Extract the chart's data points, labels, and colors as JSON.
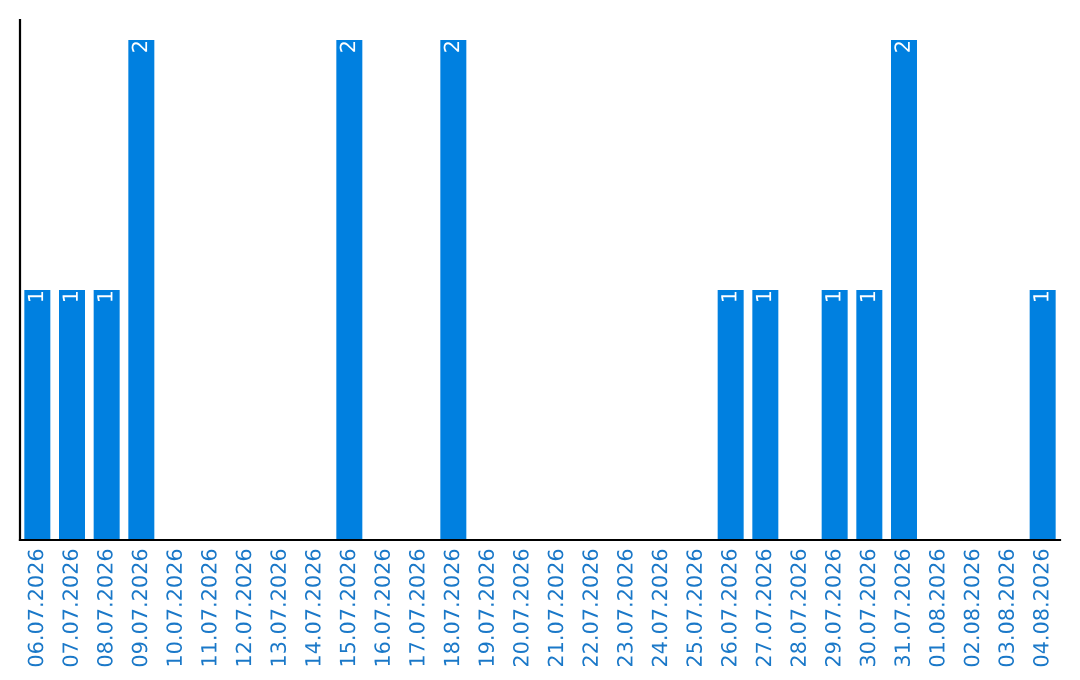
{
  "chart_data": {
    "type": "bar",
    "categories": [
      "06.07.2026",
      "07.07.2026",
      "08.07.2026",
      "09.07.2026",
      "10.07.2026",
      "11.07.2026",
      "12.07.2026",
      "13.07.2026",
      "14.07.2026",
      "15.07.2026",
      "16.07.2026",
      "17.07.2026",
      "18.07.2026",
      "19.07.2026",
      "20.07.2026",
      "21.07.2026",
      "22.07.2026",
      "23.07.2026",
      "24.07.2026",
      "25.07.2026",
      "26.07.2026",
      "27.07.2026",
      "28.07.2026",
      "29.07.2026",
      "30.07.2026",
      "31.07.2026",
      "01.08.2026",
      "02.08.2026",
      "03.08.2026",
      "04.08.2026"
    ],
    "values": [
      1,
      1,
      1,
      2,
      0,
      0,
      0,
      0,
      0,
      2,
      0,
      0,
      2,
      0,
      0,
      0,
      0,
      0,
      0,
      0,
      1,
      1,
      0,
      1,
      1,
      2,
      0,
      0,
      0,
      1
    ],
    "value_labels": [
      "1",
      "1",
      "1",
      "2",
      null,
      null,
      null,
      null,
      null,
      "2",
      null,
      null,
      "2",
      null,
      null,
      null,
      null,
      null,
      null,
      null,
      "1",
      "1",
      null,
      "1",
      "1",
      "2",
      null,
      null,
      null,
      "1"
    ],
    "color": "#0080e0",
    "tick_labels": "x",
    "grid": false,
    "legend": false
  }
}
